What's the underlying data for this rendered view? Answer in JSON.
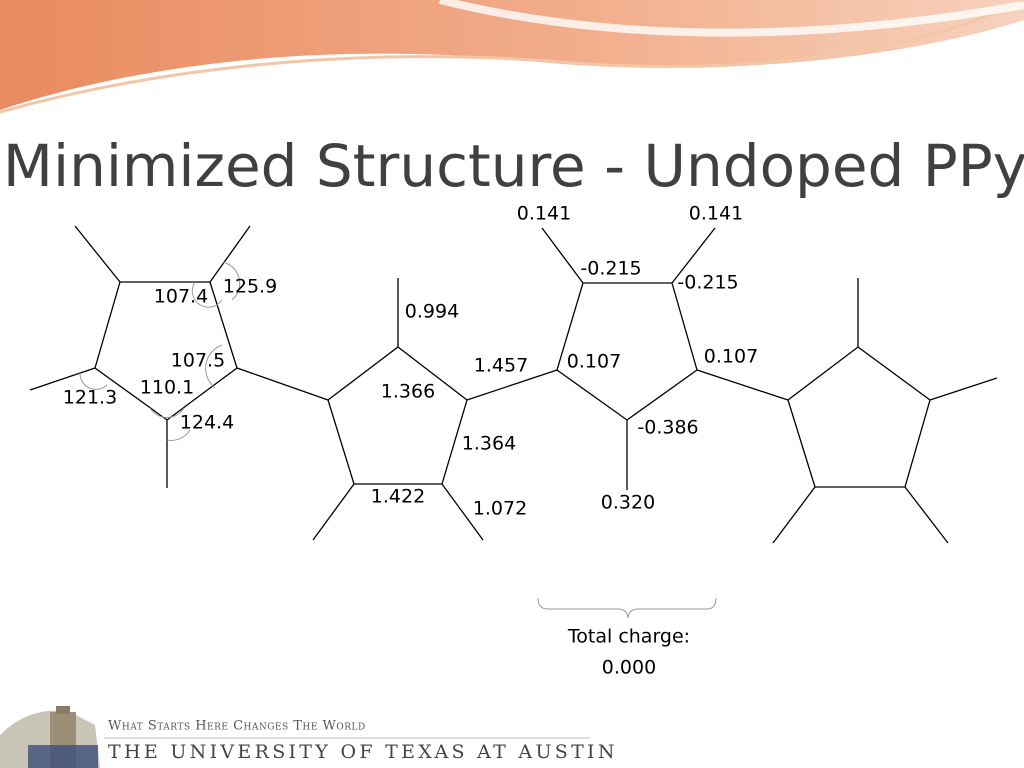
{
  "title": "Minimized Structure - Undoped PPy",
  "labels": [
    "0.141",
    "0.141",
    "-0.215",
    "-0.215",
    "0.994",
    "107.4",
    "125.9",
    "107.5",
    "110.1",
    "121.3",
    "124.4",
    "1.457",
    "0.107",
    "0.107",
    "1.366",
    "1.364",
    "-0.386",
    "1.422",
    "1.072",
    "0.320"
  ],
  "total_charge": {
    "label": "Total charge:",
    "value": "0.000"
  },
  "footer": {
    "tagline": "What Starts Here Changes The World",
    "university": "THE UNIVERSITY OF TEXAS AT AUSTIN"
  }
}
